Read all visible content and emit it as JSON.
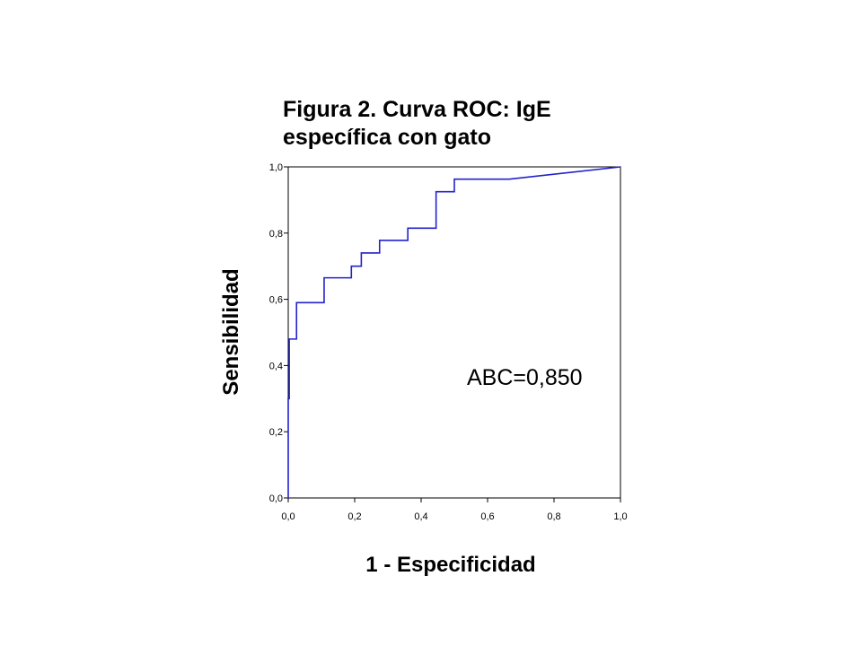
{
  "chart_data": {
    "type": "line",
    "title_lines": [
      "Figura 2. Curva ROC: IgE",
      "específica con gato"
    ],
    "xlabel": "1 - Especificidad",
    "ylabel": "Sensibilidad",
    "xlim": [
      0,
      1
    ],
    "ylim": [
      0,
      1
    ],
    "x_ticks": [
      0,
      0.2,
      0.4,
      0.6,
      0.8,
      1.0
    ],
    "y_ticks": [
      0,
      0.2,
      0.4,
      0.6,
      0.8,
      1.0
    ],
    "x_tick_labels": [
      "0,0",
      "0,2",
      "0,4",
      "0,6",
      "0,8",
      "1,0"
    ],
    "y_tick_labels": [
      "0,0",
      "0,2",
      "0,4",
      "0,6",
      "0,8",
      "1,0"
    ],
    "grid": false,
    "annotation": "ABC=0,850",
    "series": [
      {
        "color": "#2222cc",
        "x": [
          0,
          0,
          0.003,
          0.003,
          0.025,
          0.025,
          0.108,
          0.108,
          0.19,
          0.19,
          0.22,
          0.22,
          0.275,
          0.275,
          0.36,
          0.36,
          0.445,
          0.445,
          0.5,
          0.5,
          0.665,
          1.0
        ],
        "y": [
          0,
          0.3,
          0.3,
          0.48,
          0.48,
          0.59,
          0.59,
          0.665,
          0.665,
          0.7,
          0.7,
          0.74,
          0.74,
          0.778,
          0.778,
          0.815,
          0.815,
          0.925,
          0.925,
          0.963,
          0.963,
          1.0
        ]
      }
    ]
  }
}
